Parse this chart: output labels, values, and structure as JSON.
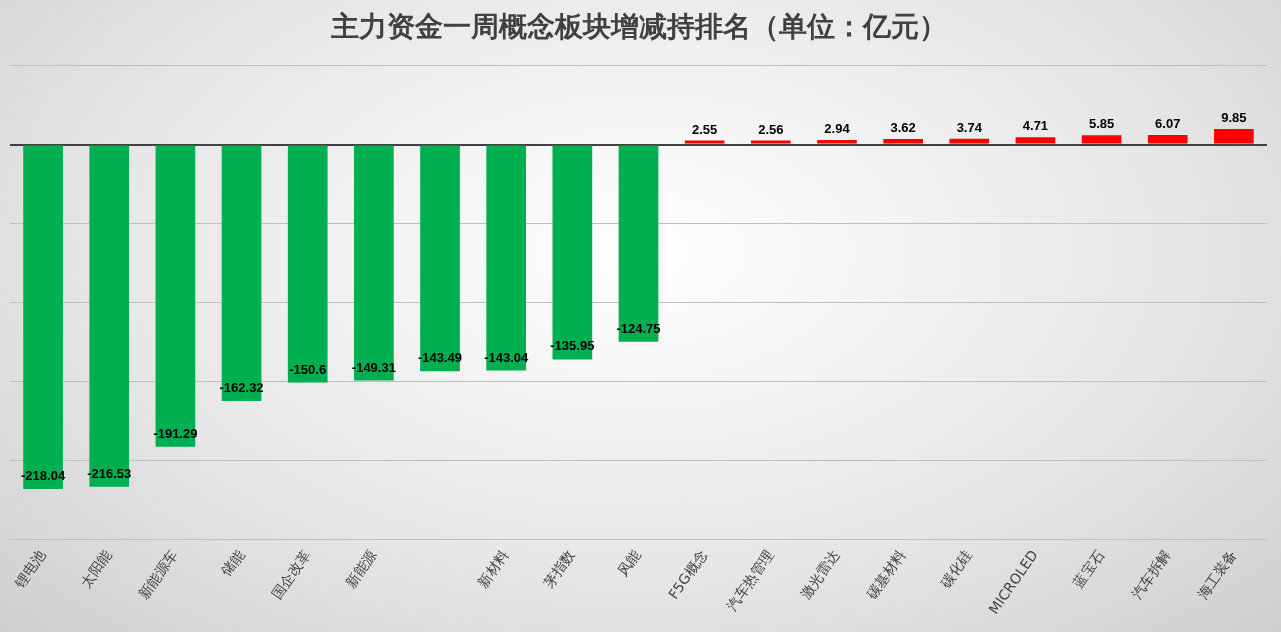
{
  "chart_data": {
    "type": "bar",
    "title": "主力资金一周概念板块增减持排名（单位：亿元）",
    "categories": [
      "锂电池",
      "太阳能",
      "新能源车",
      "储能",
      "国企改革",
      "新能源",
      null,
      "新材料",
      "茅指数",
      "风能",
      "F5G概念",
      "汽车热管理",
      "激光雷达",
      "碳基材料",
      "碳化硅",
      "MICROLED",
      "蓝宝石",
      "汽车拆解",
      "海工装备"
    ],
    "values": [
      -218.04,
      -216.53,
      -191.29,
      -162.32,
      -150.6,
      -149.31,
      -143.49,
      -143.04,
      -135.95,
      -124.75,
      2.55,
      2.56,
      2.94,
      3.62,
      3.74,
      4.71,
      5.85,
      6.07,
      9.85
    ],
    "colors": [
      "#00b050",
      "#00b050",
      "#00b050",
      "#00b050",
      "#00b050",
      "#00b050",
      "#00b050",
      "#00b050",
      "#00b050",
      "#00b050",
      "#ff0000",
      "#ff0000",
      "#ff0000",
      "#ff0000",
      "#ff0000",
      "#ff0000",
      "#ff0000",
      "#ff0000",
      "#ff0000"
    ],
    "ylim": [
      -250,
      50
    ],
    "yticks": [
      {
        "value": -250,
        "label": null
      },
      {
        "value": -200,
        "label": null
      },
      {
        "value": -150,
        "label": null
      },
      {
        "value": -100,
        "label": null
      },
      {
        "value": -50,
        "label": null
      },
      {
        "value": 0,
        "label": null
      },
      {
        "value": 50,
        "label": null
      }
    ],
    "grid": "y",
    "tick_labels": "x",
    "data_labels": true,
    "legend": false
  }
}
